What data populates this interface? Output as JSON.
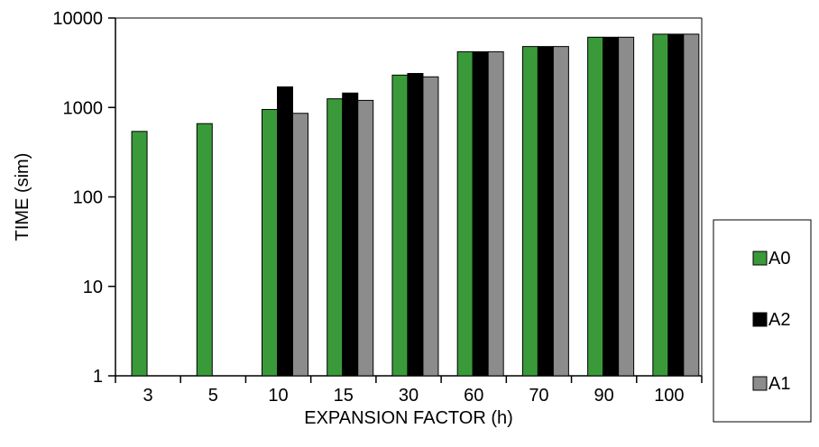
{
  "chart_data": {
    "type": "bar",
    "xlabel": "EXPANSION FACTOR (h)",
    "ylabel": "TIME (sim)",
    "yscale": "log",
    "ylim": [
      1,
      10000
    ],
    "yticks": [
      "1",
      "10",
      "100",
      "1000",
      "10000"
    ],
    "grid": false,
    "legend_position": "right",
    "categories": [
      "3",
      "5",
      "10",
      "15",
      "30",
      "60",
      "70",
      "90",
      "100"
    ],
    "series": [
      {
        "name": "A0",
        "color": "#3a9a3a",
        "values": [
          540,
          660,
          950,
          1250,
          2300,
          4200,
          4800,
          6100,
          6600
        ]
      },
      {
        "name": "A2",
        "color": "#000000",
        "values": [
          null,
          null,
          1700,
          1450,
          2400,
          4200,
          4800,
          6100,
          6600
        ]
      },
      {
        "name": "A1",
        "color": "#8c8c8c",
        "values": [
          null,
          null,
          860,
          1200,
          2200,
          4200,
          4800,
          6100,
          6600
        ]
      }
    ]
  }
}
